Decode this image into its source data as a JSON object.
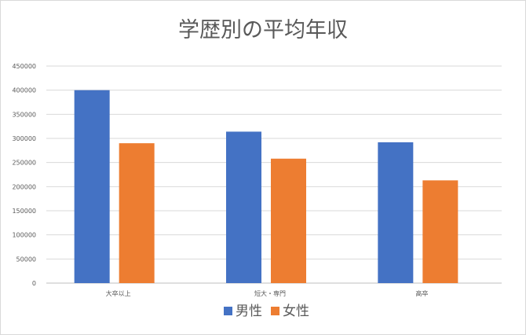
{
  "chart_data": {
    "type": "bar",
    "title": "学歴別の平均年収",
    "categories": [
      "大卒以上",
      "短大・専門",
      "高卒"
    ],
    "series": [
      {
        "name": "男性",
        "color": "#4472c4",
        "values": [
          400000,
          314000,
          292000
        ]
      },
      {
        "name": "女性",
        "color": "#ed7d31",
        "values": [
          290000,
          258000,
          213000
        ]
      }
    ],
    "ylim": [
      0,
      450000
    ],
    "yticks": [
      0,
      50000,
      100000,
      150000,
      200000,
      250000,
      300000,
      350000,
      400000,
      450000
    ],
    "grid": true,
    "legend_position": "bottom"
  }
}
